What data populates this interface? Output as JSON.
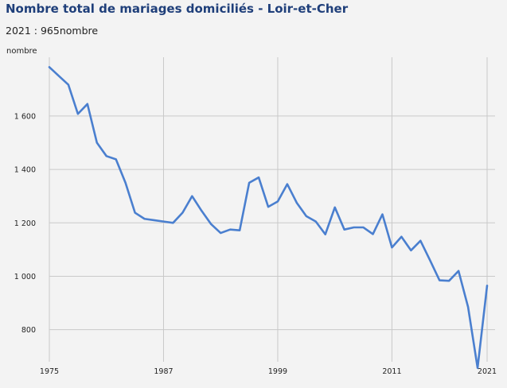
{
  "header": {
    "title": "Nombre total de mariages domiciliés - Loir-et-Cher",
    "subtitle": "2021 : 965nombre"
  },
  "chart_data": {
    "type": "line",
    "title": "Nombre total de mariages domiciliés - Loir-et-Cher",
    "subtitle": "2021 : 965nombre",
    "xlabel": "",
    "ylabel": "nombre",
    "xlim": [
      1975,
      2021
    ],
    "ylim": [
      680,
      1820
    ],
    "x_ticks": [
      1975,
      1987,
      1999,
      2011,
      2021
    ],
    "y_ticks": [
      800,
      1000,
      1200,
      1400,
      1600
    ],
    "y_tick_labels": [
      "800",
      "1 000",
      "1 200",
      "1 400",
      "1 600"
    ],
    "grid": {
      "vertical": true,
      "horizontal": true
    },
    "line_color": "#4a7fcf",
    "series": [
      {
        "x": [
          1975,
          1976,
          1977,
          1978,
          1979,
          1980,
          1981,
          1982,
          1983,
          1984,
          1985,
          1986,
          1987,
          1988,
          1989,
          1990,
          1991,
          1992,
          1993,
          1994,
          1995,
          1996,
          1997,
          1998,
          1999,
          2000,
          2001,
          2002,
          2003,
          2004,
          2005,
          2006,
          2007,
          2008,
          2009,
          2010,
          2011,
          2012,
          2013,
          2014,
          2015,
          2016,
          2017,
          2018,
          2019,
          2020,
          2021
        ],
        "values": [
          1783,
          1750,
          1717,
          1608,
          1645,
          1500,
          1450,
          1438,
          1350,
          1238,
          1215,
          1210,
          1205,
          1200,
          1238,
          1300,
          1245,
          1195,
          1162,
          1175,
          1172,
          1350,
          1370,
          1260,
          1280,
          1345,
          1275,
          1225,
          1205,
          1157,
          1258,
          1175,
          1183,
          1183,
          1158,
          1232,
          1108,
          1148,
          1097,
          1133,
          1060,
          985,
          983,
          1020,
          885,
          657,
          965
        ]
      }
    ]
  }
}
